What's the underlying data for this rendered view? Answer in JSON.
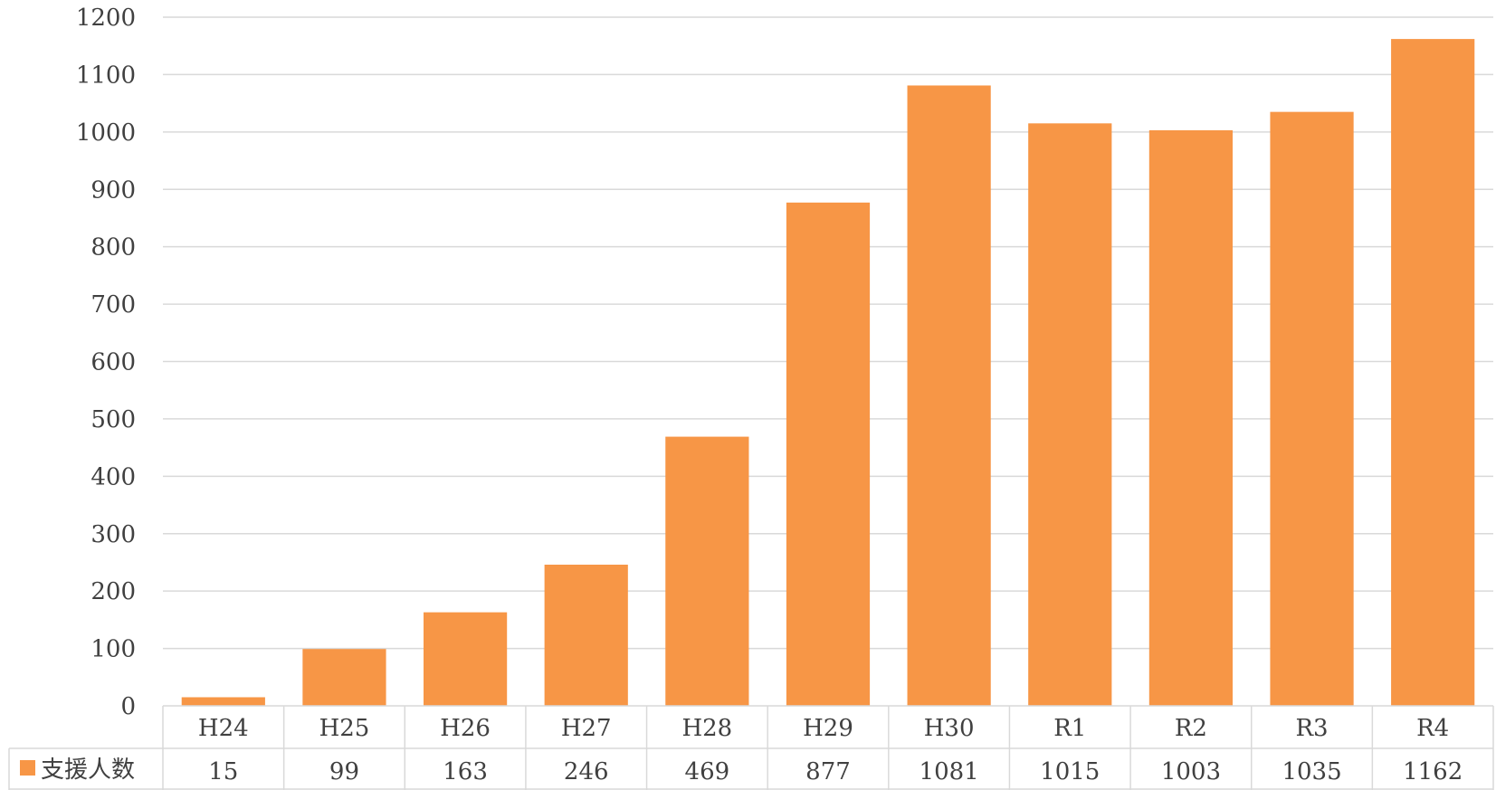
{
  "chart_data": {
    "type": "bar",
    "categories": [
      "H24",
      "H25",
      "H26",
      "H27",
      "H28",
      "H29",
      "H30",
      "R1",
      "R2",
      "R3",
      "R4"
    ],
    "series": [
      {
        "name": "支援人数",
        "values": [
          15,
          99,
          163,
          246,
          469,
          877,
          1081,
          1015,
          1003,
          1035,
          1162
        ],
        "color": "#F79646"
      }
    ],
    "title": "",
    "xlabel": "",
    "ylabel": "",
    "ylim": [
      0,
      1200
    ],
    "yticks": [
      0,
      100,
      200,
      300,
      400,
      500,
      600,
      700,
      800,
      900,
      1000,
      1100,
      1200
    ],
    "grid": true,
    "legend": "data-table-left",
    "data_table": true
  }
}
